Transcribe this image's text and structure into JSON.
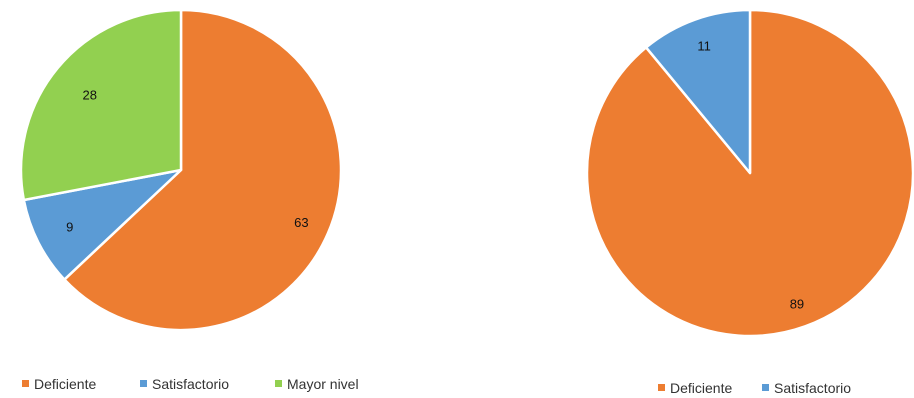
{
  "chart_data": [
    {
      "type": "pie",
      "categories": [
        "Deficiente",
        "Satisfactorio",
        "Mayor nivel"
      ],
      "values": [
        63,
        9,
        28
      ],
      "data_labels": [
        "63",
        "9",
        "28"
      ],
      "colors": [
        "#ED7D31",
        "#5B9BD5",
        "#92D050"
      ],
      "legend": {
        "position": "bottom",
        "entries": [
          "Deficiente",
          "Satisfactorio",
          "Mayor nivel"
        ]
      }
    },
    {
      "type": "pie",
      "categories": [
        "Deficiente",
        "Satisfactorio"
      ],
      "values": [
        89,
        11
      ],
      "data_labels": [
        "89",
        "11"
      ],
      "colors": [
        "#ED7D31",
        "#5B9BD5"
      ],
      "legend": {
        "position": "bottom",
        "entries": [
          "Deficiente",
          "Satisfactorio"
        ]
      }
    }
  ]
}
